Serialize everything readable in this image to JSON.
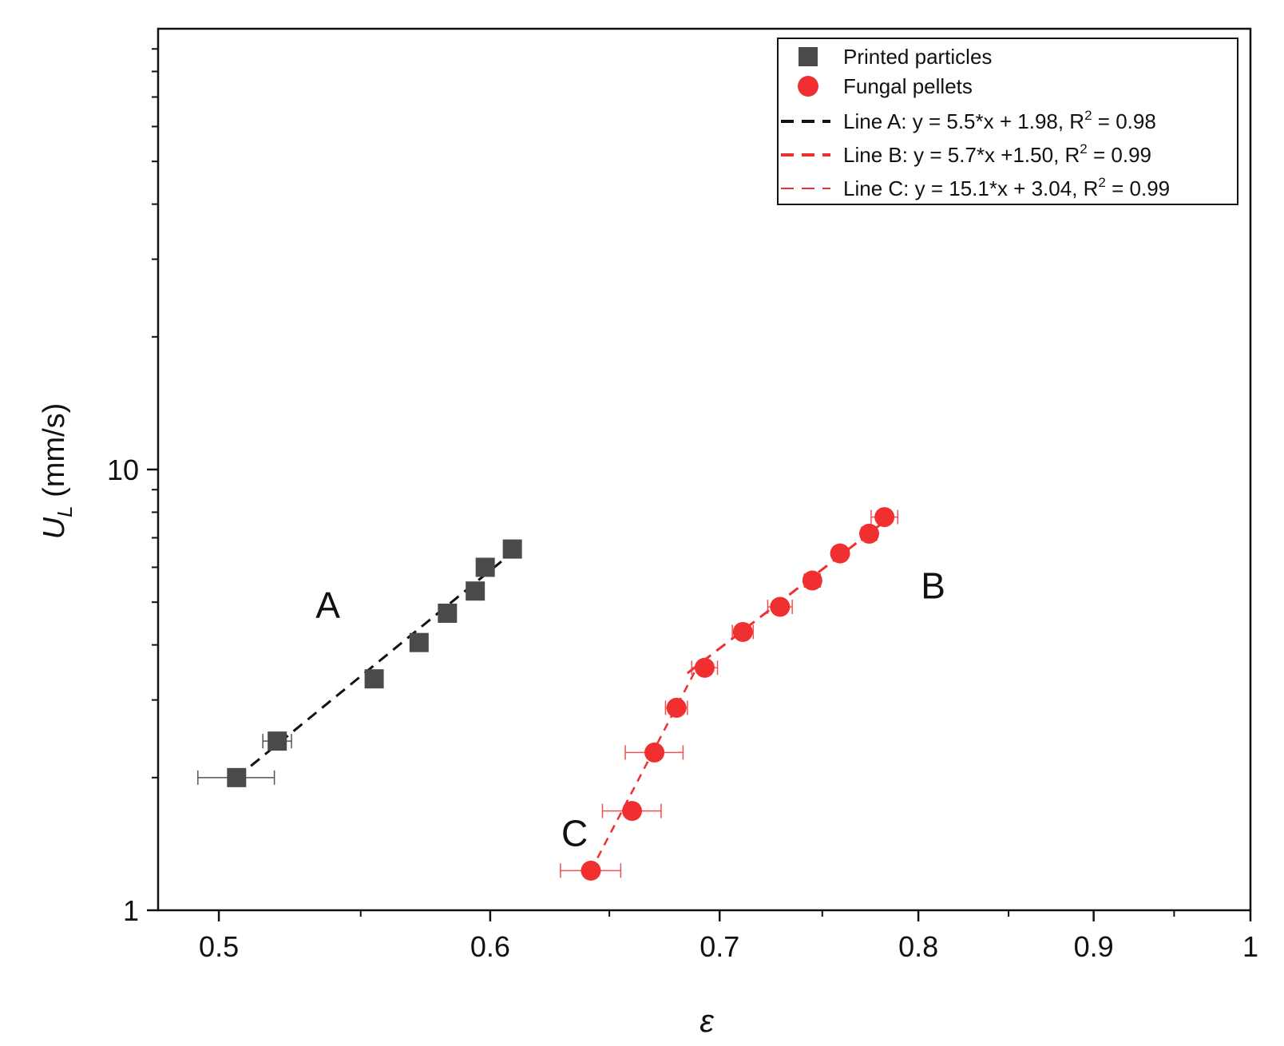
{
  "chart_data": {
    "type": "scatter",
    "title": "",
    "xlabel": "ε",
    "ylabel": {
      "main": "U",
      "sub": "L",
      "unit": " (mm/s)"
    },
    "xscale": "log",
    "yscale": "log",
    "xlim": [
      0.48,
      1.0
    ],
    "ylim": [
      1,
      100
    ],
    "x_ticks": [
      {
        "value": 0.5,
        "label": "0.5"
      },
      {
        "value": 0.6,
        "label": "0.6"
      },
      {
        "value": 0.7,
        "label": "0.7"
      },
      {
        "value": 0.8,
        "label": "0.8"
      },
      {
        "value": 0.9,
        "label": "0.9"
      },
      {
        "value": 1.0,
        "label": "1"
      }
    ],
    "x_minor_ticks": [
      0.55,
      0.65,
      0.75,
      0.85,
      0.95
    ],
    "y_ticks": [
      {
        "value": 1,
        "label": "1"
      },
      {
        "value": 10,
        "label": "10"
      }
    ],
    "y_minor_ticks": [
      2,
      3,
      4,
      5,
      6,
      7,
      8,
      9,
      20,
      30,
      40,
      50,
      60,
      70,
      80,
      90
    ],
    "series": [
      {
        "name": "Printed particles",
        "marker": "square",
        "color": "#4a4a4a",
        "points": [
          {
            "x": 0.506,
            "y": 2.0,
            "xerr": 0.013
          },
          {
            "x": 0.52,
            "y": 2.42,
            "xerr": 0.005
          },
          {
            "x": 0.555,
            "y": 3.35,
            "xerr": 0.003
          },
          {
            "x": 0.572,
            "y": 4.05,
            "xerr": 0.003
          },
          {
            "x": 0.583,
            "y": 4.72,
            "xerr": 0.003
          },
          {
            "x": 0.594,
            "y": 5.3,
            "xerr": 0.003
          },
          {
            "x": 0.598,
            "y": 6.0,
            "xerr": 0.003
          },
          {
            "x": 0.609,
            "y": 6.6,
            "xerr": 0.003
          }
        ]
      },
      {
        "name": "Fungal pellets",
        "marker": "circle",
        "color": "#f03030",
        "points": [
          {
            "x": 0.642,
            "y": 1.23,
            "xerr": 0.013
          },
          {
            "x": 0.66,
            "y": 1.68,
            "xerr": 0.013
          },
          {
            "x": 0.67,
            "y": 2.28,
            "xerr": 0.013
          },
          {
            "x": 0.68,
            "y": 2.88,
            "xerr": 0.005
          },
          {
            "x": 0.693,
            "y": 3.55,
            "xerr": 0.006
          },
          {
            "x": 0.711,
            "y": 4.28,
            "xerr": 0.005
          },
          {
            "x": 0.729,
            "y": 4.88,
            "xerr": 0.006
          },
          {
            "x": 0.745,
            "y": 5.6,
            "xerr": 0.004
          },
          {
            "x": 0.759,
            "y": 6.45,
            "xerr": 0.003
          },
          {
            "x": 0.774,
            "y": 7.15,
            "xerr": 0.004
          },
          {
            "x": 0.782,
            "y": 7.8,
            "xerr": 0.007
          }
        ]
      }
    ],
    "fit_lines": [
      {
        "name": "Line A: y = 5.5*x + 1.98, R",
        "r2_value": " = 0.98",
        "color": "#111111",
        "dash": "long",
        "x": [
          0.506,
          0.61
        ],
        "y": [
          2.0,
          6.55
        ]
      },
      {
        "name": "Line B: y = 5.7*x +1.50, R",
        "r2_value": " = 0.99",
        "color": "#f03030",
        "dash": "long",
        "x": [
          0.685,
          0.785
        ],
        "y": [
          3.45,
          7.8
        ]
      },
      {
        "name": "Line C: y = 15.1*x + 3.04, R",
        "r2_value": " = 0.99",
        "color": "#f03030",
        "dash": "short",
        "x": [
          0.642,
          0.69
        ],
        "y": [
          1.23,
          3.6
        ]
      }
    ],
    "r2_superscript": "2",
    "annotations": [
      {
        "text": "A",
        "x": 0.538,
        "y": 4.6
      },
      {
        "text": "B",
        "x": 0.808,
        "y": 5.1
      },
      {
        "text": "C",
        "x": 0.635,
        "y": 1.4
      }
    ],
    "legend_position": "top-right"
  }
}
